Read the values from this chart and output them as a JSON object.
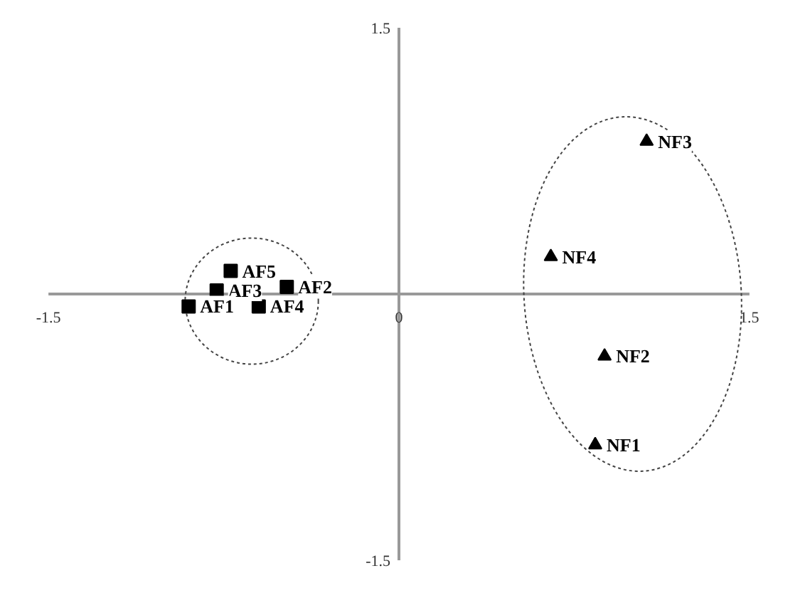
{
  "chart_data": {
    "type": "scatter",
    "xlim": [
      -1.5,
      1.5
    ],
    "ylim": [
      -1.5,
      1.5
    ],
    "xticks": [
      -1.5,
      0,
      1.5
    ],
    "yticks": [
      -1.5,
      1.5
    ],
    "grid": false,
    "series": [
      {
        "color": "#000000",
        "marker": "square",
        "x": [
          -0.72,
          -0.78,
          -0.48,
          -0.9,
          -0.6
        ],
        "values": [
          0.13,
          0.02,
          0.04,
          -0.07,
          -0.07
        ]
      },
      {
        "color": "#000000",
        "marker": "triangle",
        "x": [
          0.65,
          1.06,
          0.88,
          0.84
        ],
        "values": [
          0.21,
          0.86,
          -0.35,
          -0.85
        ]
      }
    ],
    "annotations": [
      {
        "text": "AF5",
        "x": -0.72,
        "y": 0.13
      },
      {
        "text": "AF3",
        "x": -0.78,
        "y": 0.02
      },
      {
        "text": "AF2",
        "x": -0.48,
        "y": 0.04
      },
      {
        "text": "AF1",
        "x": -0.9,
        "y": -0.07
      },
      {
        "text": "AF4",
        "x": -0.6,
        "y": -0.07
      },
      {
        "text": "NF4",
        "x": 0.65,
        "y": 0.21
      },
      {
        "text": "NF3",
        "x": 1.06,
        "y": 0.86
      },
      {
        "text": "NF2",
        "x": 0.88,
        "y": -0.35
      },
      {
        "text": "NF1",
        "x": 0.84,
        "y": -0.85
      }
    ]
  }
}
